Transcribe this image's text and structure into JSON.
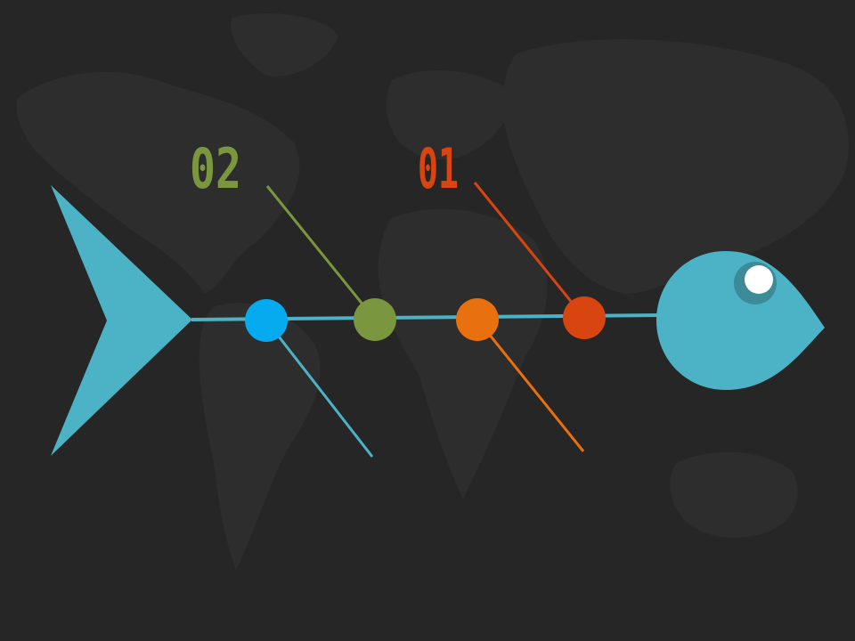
{
  "labels": {
    "first": "01",
    "second": "02"
  },
  "colors": {
    "background": "#262626",
    "map": "#2d2d2d",
    "fish": "#4bb3c5",
    "fish_eye_ring": "#3d8a99",
    "fish_eye": "#ffffff",
    "spine": "#4bb3c5",
    "node_blue": "#06abef",
    "node_green": "#7a963e",
    "node_orange": "#e9700f",
    "node_red": "#d84510",
    "label_first": "#d84510",
    "label_second": "#7a963e"
  },
  "icons": {
    "eye": "fish-eye-icon"
  }
}
